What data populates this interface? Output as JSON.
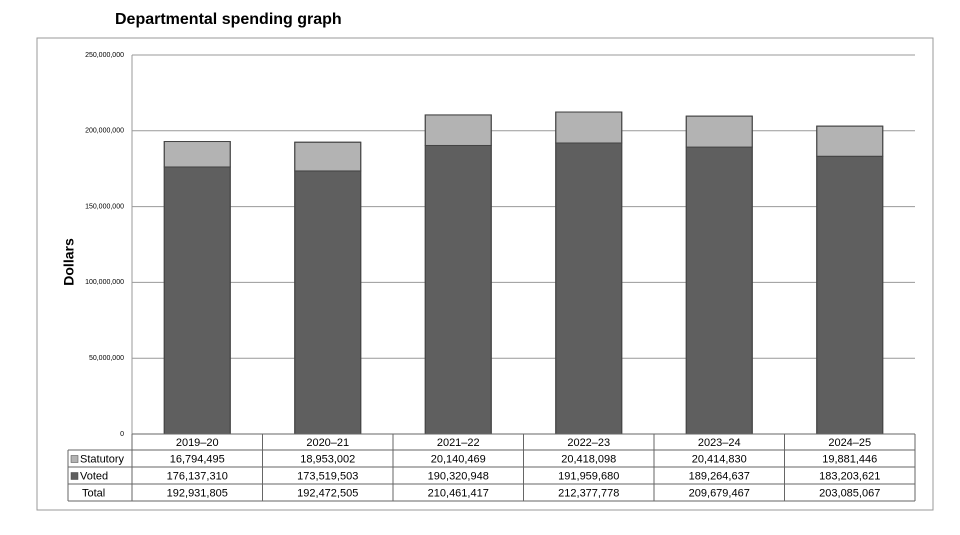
{
  "chart_data": {
    "type": "stacked-bar",
    "title": "Departmental spending graph",
    "y_label": "Dollars",
    "categories": [
      "2019–20",
      "2020–21",
      "2021–22",
      "2022–23",
      "2023–24",
      "2024–25"
    ],
    "series": [
      {
        "name": "Statutory",
        "color": "#b3b3b3",
        "values": [
          16794495,
          18953002,
          20140469,
          20418098,
          20414830,
          19881446
        ],
        "value_labels": [
          "16,794,495",
          "18,953,002",
          "20,140,469",
          "20,418,098",
          "20,414,830",
          "19,881,446"
        ]
      },
      {
        "name": "Voted",
        "color": "#5f5f5f",
        "values": [
          176137310,
          173519503,
          190320948,
          191959680,
          189264637,
          183203621
        ],
        "value_labels": [
          "176,137,310",
          "173,519,503",
          "190,320,948",
          "191,959,680",
          "189,264,637",
          "183,203,621"
        ]
      }
    ],
    "totals": {
      "name": "Total",
      "values": [
        192931805,
        192472505,
        210461417,
        212377778,
        209679467,
        203085067
      ],
      "value_labels": [
        "192,931,805",
        "192,472,505",
        "210,461,417",
        "212,377,778",
        "209,679,467",
        "203,085,067"
      ]
    },
    "ylim": [
      0,
      250000000
    ],
    "yticks": [
      0,
      {
        "value": 50000000,
        "label": "50,000,000"
      },
      {
        "value": 100000000,
        "label": "100,000,000"
      },
      {
        "value": 150000000,
        "label": "150,000,000"
      },
      {
        "value": 200000000,
        "label": "200,000,000"
      },
      {
        "value": 250000000,
        "label": "250,000,000"
      }
    ],
    "grid": true
  }
}
